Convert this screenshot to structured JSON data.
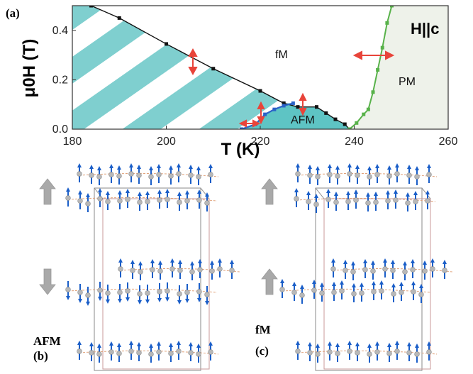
{
  "panel_a_label": "(a)",
  "panel_b_label": "(b)",
  "panel_c_label": "(c)",
  "field_direction": "H||c",
  "region_labels": {
    "fm": "fM",
    "afm": "AFM",
    "pm": "PM"
  },
  "structure_labels": {
    "afm": "AFM",
    "fm": "fM"
  },
  "colors": {
    "hatch_teal": "#7fcfcf",
    "afm_fill": "#5ec4c4",
    "pm_fill": "#eef2ea",
    "green_line": "#58b24a",
    "blue_line": "#2a62c8",
    "red_arrow": "#e8443a",
    "spin_blue": "#1a5ec8",
    "atom_gray": "#b8b8b8",
    "big_arrow_gray": "#a9a9a9"
  },
  "chart_data": {
    "type": "line",
    "title": "",
    "xlabel": "T (K)",
    "ylabel": "μ0H (T)",
    "xlim": [
      180,
      260
    ],
    "ylim": [
      0,
      0.5
    ],
    "xticks": [
      "180",
      "200",
      "220",
      "240",
      "260"
    ],
    "yticks": [
      "0.0",
      "0.2",
      "0.4"
    ],
    "series": [
      {
        "x": [
          184,
          190,
          200,
          210,
          220,
          225
        ],
        "y": [
          0.5,
          0.45,
          0.345,
          0.245,
          0.155,
          0.105
        ]
      },
      {
        "x": [
          225,
          228,
          232,
          234,
          236,
          238,
          239
        ],
        "y": [
          0.105,
          0.09,
          0.09,
          0.065,
          0.04,
          0.02,
          0.0
        ]
      },
      {
        "x": [
          216,
          219,
          221,
          223,
          225,
          227
        ],
        "y": [
          0.0,
          0.02,
          0.06,
          0.08,
          0.095,
          0.105
        ]
      },
      {
        "x": [
          239,
          240.5,
          242,
          243,
          244,
          245,
          246,
          247,
          248
        ],
        "y": [
          0.0,
          0.025,
          0.06,
          0.08,
          0.15,
          0.24,
          0.33,
          0.43,
          0.5
        ]
      }
    ]
  }
}
